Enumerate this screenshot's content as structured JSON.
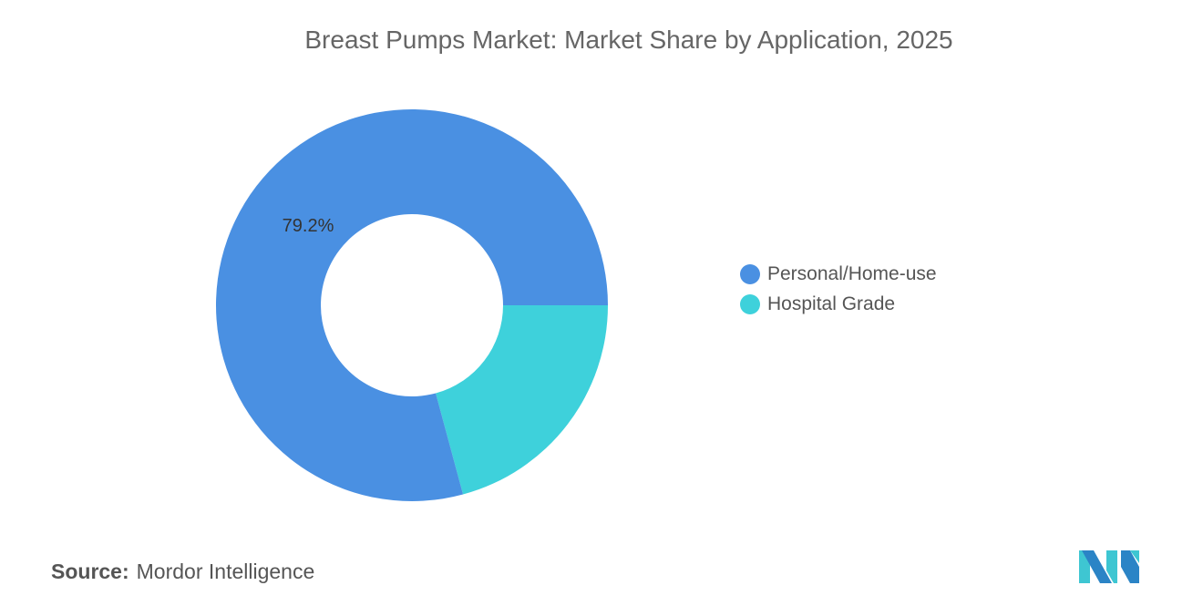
{
  "chart_data": {
    "type": "pie",
    "title": "Breast Pumps Market: Market Share by Application, 2025",
    "donut": true,
    "categories": [
      "Personal/Home-use",
      "Hospital Grade"
    ],
    "values": [
      79.2,
      20.8
    ],
    "data_labels": [
      "79.2%",
      ""
    ],
    "colors": [
      "#4a90e2",
      "#3ed1db"
    ],
    "legend_position": "right"
  },
  "source": {
    "label": "Source:",
    "value": "Mordor Intelligence"
  },
  "logo": {
    "colors": [
      "#2b84c6",
      "#3ec6d2"
    ]
  }
}
